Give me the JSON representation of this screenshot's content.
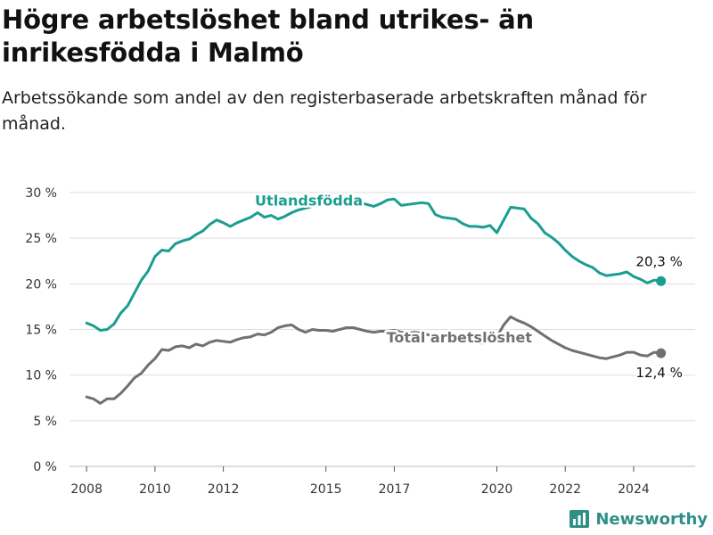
{
  "header": {
    "title": "Högre arbetslöshet bland utrikes- än inrikesfödda i Malmö",
    "subtitle": "Arbetssökande som andel av den registerbaserade arbetskraften månad för månad."
  },
  "brand": {
    "name": "Newsworthy",
    "icon": "bar-chart-logo-icon",
    "color": "#2e8f87"
  },
  "chart_data": {
    "type": "line",
    "y_ticks": [
      "0 %",
      "5 %",
      "10 %",
      "15 %",
      "20 %",
      "25 %",
      "30 %"
    ],
    "x_ticks": [
      "2008",
      "2010",
      "2012",
      "2015",
      "2017",
      "2020",
      "2022",
      "2024"
    ],
    "xlim": [
      2007.5,
      2025.8
    ],
    "ylim": [
      0,
      30
    ],
    "grid": true,
    "series": [
      {
        "name": "Utlandsfödda",
        "color": "#1a9e8f",
        "end_label": "20,3 %",
        "points": [
          [
            2008.0,
            15.7
          ],
          [
            2008.2,
            15.4
          ],
          [
            2008.4,
            14.9
          ],
          [
            2008.6,
            15.0
          ],
          [
            2008.8,
            15.6
          ],
          [
            2009.0,
            16.8
          ],
          [
            2009.2,
            17.6
          ],
          [
            2009.4,
            19.0
          ],
          [
            2009.6,
            20.4
          ],
          [
            2009.8,
            21.4
          ],
          [
            2010.0,
            23.0
          ],
          [
            2010.2,
            23.7
          ],
          [
            2010.4,
            23.6
          ],
          [
            2010.6,
            24.4
          ],
          [
            2010.8,
            24.7
          ],
          [
            2011.0,
            24.9
          ],
          [
            2011.2,
            25.4
          ],
          [
            2011.4,
            25.8
          ],
          [
            2011.6,
            26.5
          ],
          [
            2011.8,
            27.0
          ],
          [
            2012.0,
            26.7
          ],
          [
            2012.2,
            26.3
          ],
          [
            2012.4,
            26.7
          ],
          [
            2012.6,
            27.0
          ],
          [
            2012.8,
            27.3
          ],
          [
            2013.0,
            27.8
          ],
          [
            2013.2,
            27.3
          ],
          [
            2013.4,
            27.5
          ],
          [
            2013.6,
            27.1
          ],
          [
            2013.8,
            27.4
          ],
          [
            2014.0,
            27.8
          ],
          [
            2014.2,
            28.1
          ],
          [
            2014.4,
            28.3
          ],
          [
            2014.6,
            28.5
          ],
          [
            2014.8,
            28.7
          ],
          [
            2015.0,
            28.7
          ],
          [
            2015.2,
            29.0
          ],
          [
            2015.4,
            28.8
          ],
          [
            2015.6,
            29.2
          ],
          [
            2015.8,
            29.4
          ],
          [
            2016.0,
            28.9
          ],
          [
            2016.2,
            28.7
          ],
          [
            2016.4,
            28.5
          ],
          [
            2016.6,
            28.8
          ],
          [
            2016.8,
            29.2
          ],
          [
            2017.0,
            29.3
          ],
          [
            2017.2,
            28.6
          ],
          [
            2017.4,
            28.7
          ],
          [
            2017.6,
            28.8
          ],
          [
            2017.8,
            28.9
          ],
          [
            2018.0,
            28.8
          ],
          [
            2018.2,
            27.6
          ],
          [
            2018.4,
            27.3
          ],
          [
            2018.6,
            27.2
          ],
          [
            2018.8,
            27.1
          ],
          [
            2019.0,
            26.6
          ],
          [
            2019.2,
            26.3
          ],
          [
            2019.4,
            26.3
          ],
          [
            2019.6,
            26.2
          ],
          [
            2019.8,
            26.4
          ],
          [
            2020.0,
            25.6
          ],
          [
            2020.2,
            27.0
          ],
          [
            2020.4,
            28.4
          ],
          [
            2020.6,
            28.3
          ],
          [
            2020.8,
            28.2
          ],
          [
            2021.0,
            27.2
          ],
          [
            2021.2,
            26.6
          ],
          [
            2021.4,
            25.6
          ],
          [
            2021.6,
            25.1
          ],
          [
            2021.8,
            24.5
          ],
          [
            2022.0,
            23.7
          ],
          [
            2022.2,
            23.0
          ],
          [
            2022.4,
            22.5
          ],
          [
            2022.6,
            22.1
          ],
          [
            2022.8,
            21.8
          ],
          [
            2023.0,
            21.2
          ],
          [
            2023.2,
            20.9
          ],
          [
            2023.4,
            21.0
          ],
          [
            2023.6,
            21.1
          ],
          [
            2023.8,
            21.3
          ],
          [
            2024.0,
            20.8
          ],
          [
            2024.2,
            20.5
          ],
          [
            2024.4,
            20.1
          ],
          [
            2024.6,
            20.4
          ],
          [
            2024.8,
            20.3
          ]
        ]
      },
      {
        "name": "Total arbetslöshet",
        "color": "#707070",
        "end_label": "12,4 %",
        "points": [
          [
            2008.0,
            7.6
          ],
          [
            2008.2,
            7.4
          ],
          [
            2008.4,
            6.9
          ],
          [
            2008.6,
            7.4
          ],
          [
            2008.8,
            7.4
          ],
          [
            2009.0,
            8.0
          ],
          [
            2009.2,
            8.8
          ],
          [
            2009.4,
            9.7
          ],
          [
            2009.6,
            10.2
          ],
          [
            2009.8,
            11.1
          ],
          [
            2010.0,
            11.8
          ],
          [
            2010.2,
            12.8
          ],
          [
            2010.4,
            12.7
          ],
          [
            2010.6,
            13.1
          ],
          [
            2010.8,
            13.2
          ],
          [
            2011.0,
            13.0
          ],
          [
            2011.2,
            13.4
          ],
          [
            2011.4,
            13.2
          ],
          [
            2011.6,
            13.6
          ],
          [
            2011.8,
            13.8
          ],
          [
            2012.0,
            13.7
          ],
          [
            2012.2,
            13.6
          ],
          [
            2012.4,
            13.9
          ],
          [
            2012.6,
            14.1
          ],
          [
            2012.8,
            14.2
          ],
          [
            2013.0,
            14.5
          ],
          [
            2013.2,
            14.4
          ],
          [
            2013.4,
            14.7
          ],
          [
            2013.6,
            15.2
          ],
          [
            2013.8,
            15.4
          ],
          [
            2014.0,
            15.5
          ],
          [
            2014.2,
            15.0
          ],
          [
            2014.4,
            14.7
          ],
          [
            2014.6,
            15.0
          ],
          [
            2014.8,
            14.9
          ],
          [
            2015.0,
            14.9
          ],
          [
            2015.2,
            14.8
          ],
          [
            2015.4,
            15.0
          ],
          [
            2015.6,
            15.2
          ],
          [
            2015.8,
            15.2
          ],
          [
            2016.0,
            15.0
          ],
          [
            2016.2,
            14.8
          ],
          [
            2016.4,
            14.7
          ],
          [
            2016.6,
            14.8
          ],
          [
            2016.8,
            14.8
          ],
          [
            2017.0,
            14.9
          ],
          [
            2017.2,
            14.7
          ],
          [
            2017.4,
            14.6
          ],
          [
            2017.6,
            14.7
          ],
          [
            2017.8,
            14.6
          ],
          [
            2018.0,
            14.4
          ],
          [
            2018.2,
            14.2
          ],
          [
            2018.4,
            14.0
          ],
          [
            2018.6,
            13.9
          ],
          [
            2018.8,
            13.9
          ],
          [
            2019.0,
            13.7
          ],
          [
            2019.2,
            13.6
          ],
          [
            2019.4,
            13.6
          ],
          [
            2019.6,
            13.5
          ],
          [
            2019.8,
            13.7
          ],
          [
            2020.0,
            14.2
          ],
          [
            2020.2,
            15.5
          ],
          [
            2020.4,
            16.4
          ],
          [
            2020.6,
            16.0
          ],
          [
            2020.8,
            15.7
          ],
          [
            2021.0,
            15.3
          ],
          [
            2021.2,
            14.8
          ],
          [
            2021.4,
            14.3
          ],
          [
            2021.6,
            13.8
          ],
          [
            2021.8,
            13.4
          ],
          [
            2022.0,
            13.0
          ],
          [
            2022.2,
            12.7
          ],
          [
            2022.4,
            12.5
          ],
          [
            2022.6,
            12.3
          ],
          [
            2022.8,
            12.1
          ],
          [
            2023.0,
            11.9
          ],
          [
            2023.2,
            11.8
          ],
          [
            2023.4,
            12.0
          ],
          [
            2023.6,
            12.2
          ],
          [
            2023.8,
            12.5
          ],
          [
            2024.0,
            12.5
          ],
          [
            2024.2,
            12.2
          ],
          [
            2024.4,
            12.1
          ],
          [
            2024.6,
            12.5
          ],
          [
            2024.8,
            12.4
          ]
        ]
      }
    ]
  }
}
